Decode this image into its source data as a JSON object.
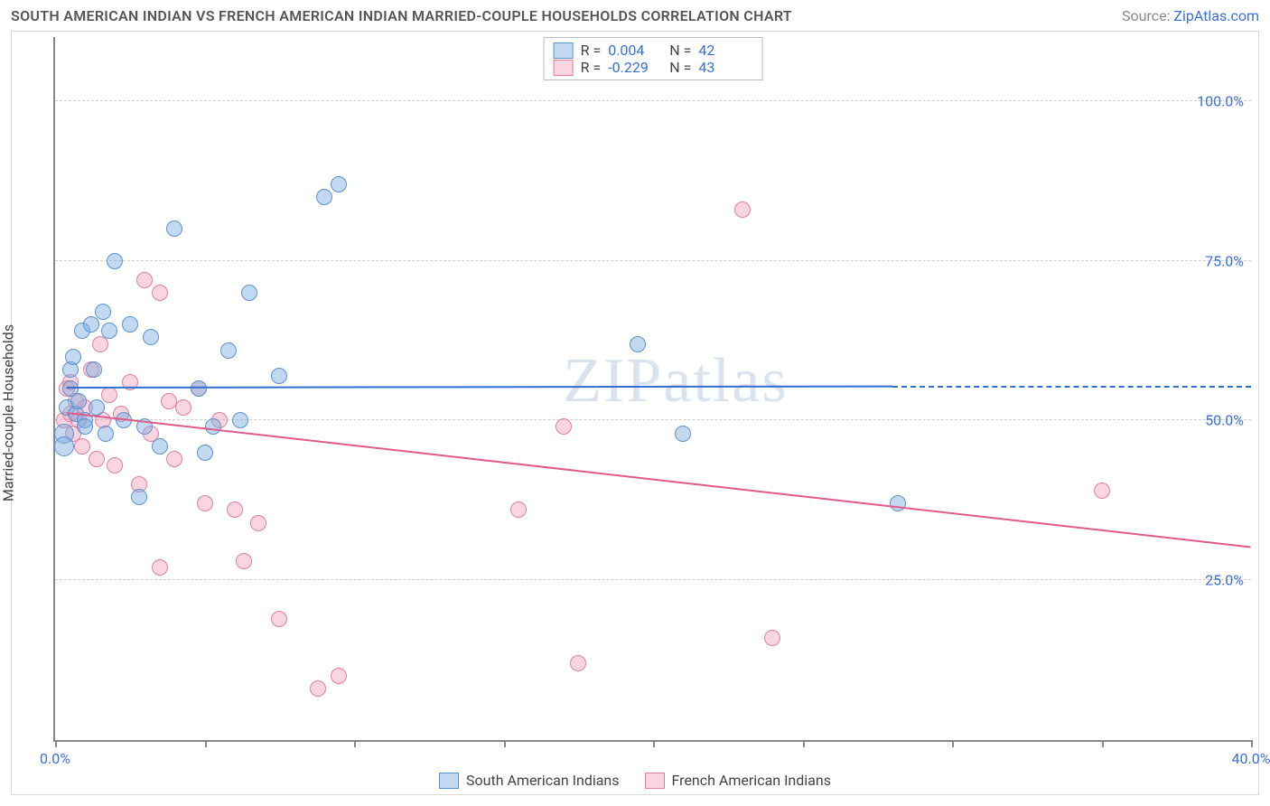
{
  "title": "SOUTH AMERICAN INDIAN VS FRENCH AMERICAN INDIAN MARRIED-COUPLE HOUSEHOLDS CORRELATION CHART",
  "title_fontsize": 15,
  "title_color": "#555555",
  "source_prefix": "Source: ",
  "source_link_text": "ZipAtlas.com",
  "source_color": "#888888",
  "link_color": "#3a6fd8",
  "watermark_text": "ZIPatlas",
  "watermark_color": "rgba(120,150,190,0.28)",
  "ylabel": "Married-couple Households",
  "ylabel_fontsize": 16,
  "xlim": [
    0,
    40
  ],
  "ylim": [
    0,
    110
  ],
  "x_ticks": [
    0,
    5,
    10,
    15,
    20,
    25,
    30,
    35,
    40
  ],
  "x_tick_labels": {
    "0": "0.0%",
    "40": "40.0%"
  },
  "y_gridlines": [
    25,
    50,
    75,
    100
  ],
  "y_tick_labels": {
    "25": "25.0%",
    "50": "50.0%",
    "75": "75.0%",
    "100": "100.0%"
  },
  "axis_label_color": "#3a6fd8",
  "grid_color": "#cccccc",
  "series": {
    "blue": {
      "label": "South American Indians",
      "fill": "rgba(120,170,225,0.45)",
      "stroke": "#5b93cf",
      "line_color": "#2f6fd0",
      "R_label": "R =",
      "R": "0.004",
      "N_label": "N =",
      "N": "42",
      "trend": {
        "x1": 0.4,
        "y1": 55,
        "x2": 28,
        "y2": 55.2,
        "dash_from_x": 28,
        "dash_to_x": 40
      },
      "points": [
        {
          "x": 0.3,
          "y": 48,
          "r": 11
        },
        {
          "x": 0.3,
          "y": 46,
          "r": 11
        },
        {
          "x": 0.4,
          "y": 52,
          "r": 9
        },
        {
          "x": 0.5,
          "y": 55,
          "r": 9
        },
        {
          "x": 0.5,
          "y": 58,
          "r": 9
        },
        {
          "x": 0.6,
          "y": 60,
          "r": 9
        },
        {
          "x": 0.7,
          "y": 51,
          "r": 9
        },
        {
          "x": 0.8,
          "y": 53,
          "r": 9
        },
        {
          "x": 0.9,
          "y": 64,
          "r": 9
        },
        {
          "x": 1.0,
          "y": 50,
          "r": 9
        },
        {
          "x": 1.0,
          "y": 49,
          "r": 9
        },
        {
          "x": 1.2,
          "y": 65,
          "r": 9
        },
        {
          "x": 1.3,
          "y": 58,
          "r": 9
        },
        {
          "x": 1.4,
          "y": 52,
          "r": 9
        },
        {
          "x": 1.6,
          "y": 67,
          "r": 9
        },
        {
          "x": 1.7,
          "y": 48,
          "r": 9
        },
        {
          "x": 1.8,
          "y": 64,
          "r": 9
        },
        {
          "x": 2.0,
          "y": 75,
          "r": 9
        },
        {
          "x": 2.3,
          "y": 50,
          "r": 9
        },
        {
          "x": 2.5,
          "y": 65,
          "r": 9
        },
        {
          "x": 2.8,
          "y": 38,
          "r": 9
        },
        {
          "x": 3.0,
          "y": 49,
          "r": 9
        },
        {
          "x": 3.2,
          "y": 63,
          "r": 9
        },
        {
          "x": 3.5,
          "y": 46,
          "r": 9
        },
        {
          "x": 4.0,
          "y": 80,
          "r": 9
        },
        {
          "x": 4.8,
          "y": 55,
          "r": 9
        },
        {
          "x": 5.0,
          "y": 45,
          "r": 9
        },
        {
          "x": 5.3,
          "y": 49,
          "r": 9
        },
        {
          "x": 5.8,
          "y": 61,
          "r": 9
        },
        {
          "x": 6.2,
          "y": 50,
          "r": 9
        },
        {
          "x": 6.5,
          "y": 70,
          "r": 9
        },
        {
          "x": 7.5,
          "y": 57,
          "r": 9
        },
        {
          "x": 9.0,
          "y": 85,
          "r": 9
        },
        {
          "x": 9.5,
          "y": 87,
          "r": 9
        },
        {
          "x": 19.5,
          "y": 62,
          "r": 9
        },
        {
          "x": 21.0,
          "y": 48,
          "r": 9
        },
        {
          "x": 28.2,
          "y": 37,
          "r": 9
        }
      ]
    },
    "pink": {
      "label": "French American Indians",
      "fill": "rgba(240,150,175,0.40)",
      "stroke": "#e37fa0",
      "line_color": "#e05a8a",
      "R_label": "R =",
      "R": "-0.229",
      "N_label": "N =",
      "N": "43",
      "trend": {
        "x1": 0.4,
        "y1": 51,
        "x2": 40,
        "y2": 30
      },
      "points": [
        {
          "x": 0.3,
          "y": 50,
          "r": 9
        },
        {
          "x": 0.4,
          "y": 55,
          "r": 9
        },
        {
          "x": 0.5,
          "y": 56,
          "r": 9
        },
        {
          "x": 0.5,
          "y": 51,
          "r": 9
        },
        {
          "x": 0.6,
          "y": 48,
          "r": 9
        },
        {
          "x": 0.7,
          "y": 53,
          "r": 9
        },
        {
          "x": 0.8,
          "y": 50,
          "r": 9
        },
        {
          "x": 0.9,
          "y": 46,
          "r": 9
        },
        {
          "x": 1.0,
          "y": 52,
          "r": 9
        },
        {
          "x": 1.2,
          "y": 58,
          "r": 9
        },
        {
          "x": 1.4,
          "y": 44,
          "r": 9
        },
        {
          "x": 1.5,
          "y": 62,
          "r": 9
        },
        {
          "x": 1.6,
          "y": 50,
          "r": 9
        },
        {
          "x": 1.8,
          "y": 54,
          "r": 9
        },
        {
          "x": 2.0,
          "y": 43,
          "r": 9
        },
        {
          "x": 2.2,
          "y": 51,
          "r": 9
        },
        {
          "x": 2.5,
          "y": 56,
          "r": 9
        },
        {
          "x": 2.8,
          "y": 40,
          "r": 9
        },
        {
          "x": 3.0,
          "y": 72,
          "r": 9
        },
        {
          "x": 3.2,
          "y": 48,
          "r": 9
        },
        {
          "x": 3.5,
          "y": 70,
          "r": 9
        },
        {
          "x": 3.5,
          "y": 27,
          "r": 9
        },
        {
          "x": 3.8,
          "y": 53,
          "r": 9
        },
        {
          "x": 4.0,
          "y": 44,
          "r": 9
        },
        {
          "x": 4.3,
          "y": 52,
          "r": 9
        },
        {
          "x": 4.8,
          "y": 55,
          "r": 9
        },
        {
          "x": 5.0,
          "y": 37,
          "r": 9
        },
        {
          "x": 5.5,
          "y": 50,
          "r": 9
        },
        {
          "x": 6.0,
          "y": 36,
          "r": 9
        },
        {
          "x": 6.3,
          "y": 28,
          "r": 9
        },
        {
          "x": 6.8,
          "y": 34,
          "r": 9
        },
        {
          "x": 7.5,
          "y": 19,
          "r": 9
        },
        {
          "x": 8.8,
          "y": 8,
          "r": 9
        },
        {
          "x": 9.5,
          "y": 10,
          "r": 9
        },
        {
          "x": 15.5,
          "y": 36,
          "r": 9
        },
        {
          "x": 17.0,
          "y": 49,
          "r": 9
        },
        {
          "x": 17.5,
          "y": 12,
          "r": 9
        },
        {
          "x": 23.0,
          "y": 83,
          "r": 9
        },
        {
          "x": 24.0,
          "y": 16,
          "r": 9
        },
        {
          "x": 35.0,
          "y": 39,
          "r": 9
        }
      ]
    }
  }
}
